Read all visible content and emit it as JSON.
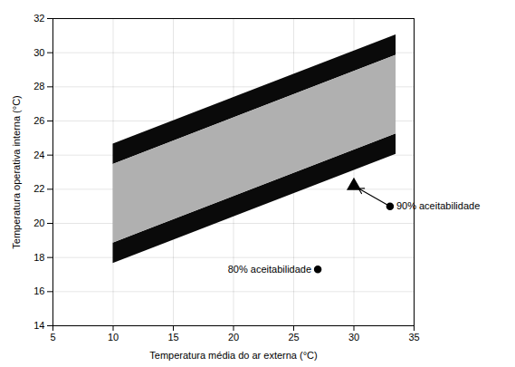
{
  "chart_data": {
    "type": "area",
    "xlabel": "Temperatura média do ar externa (°C)",
    "ylabel": "Temperatura operativa interna (°C)",
    "xlim": [
      5,
      35
    ],
    "ylim": [
      14,
      32
    ],
    "xticks": [
      5,
      10,
      15,
      20,
      25,
      30,
      35
    ],
    "yticks": [
      14,
      16,
      18,
      20,
      22,
      24,
      26,
      28,
      30,
      32
    ],
    "grid": true,
    "x": [
      10,
      33.5
    ],
    "bands": [
      {
        "color": "#0a0a0a",
        "lower": [
          23.45,
          29.85
        ],
        "upper": [
          24.65,
          31.05
        ]
      },
      {
        "color": "#0a0a0a",
        "lower": [
          17.65,
          24.05
        ],
        "upper": [
          18.85,
          25.25
        ]
      },
      {
        "color": "#b0b0b0",
        "lower": [
          18.85,
          25.25
        ],
        "upper": [
          23.45,
          29.85
        ]
      }
    ],
    "points": [
      {
        "x": 30,
        "y": 22.2,
        "marker": "triangle",
        "color": "#000000"
      },
      {
        "x": 33,
        "y": 21.0,
        "marker": "circle",
        "color": "#000000"
      },
      {
        "x": 27,
        "y": 17.3,
        "marker": "circle",
        "color": "#000000"
      }
    ],
    "annotations": [
      {
        "text": "90% aceitabilidade",
        "x": 33,
        "y": 21.0,
        "align": "left",
        "arrow_to": [
          30,
          22.2
        ]
      },
      {
        "text": "80% aceitabilidade",
        "x": 27,
        "y": 17.3,
        "align": "right"
      }
    ]
  }
}
